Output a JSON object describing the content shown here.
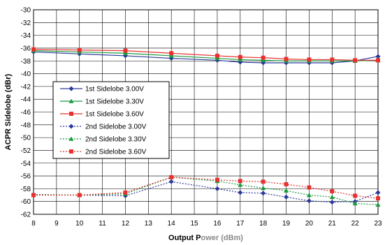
{
  "chart_data": {
    "type": "line",
    "xlabel_parts": [
      "Output P",
      "ower (dBm)"
    ],
    "ylabel": "ACPR Sidelobe (dBr)",
    "x": [
      8,
      10,
      12,
      14,
      16,
      17,
      18,
      19,
      20,
      21,
      22,
      23
    ],
    "xticks": [
      8,
      9,
      10,
      11,
      12,
      13,
      14,
      15,
      16,
      17,
      18,
      19,
      20,
      21,
      22,
      23
    ],
    "xlim": [
      8,
      23
    ],
    "ylim": [
      -62,
      -30
    ],
    "yticks": [
      -30,
      -32,
      -34,
      -36,
      -38,
      -40,
      -42,
      -44,
      -46,
      -48,
      -50,
      -52,
      -54,
      -56,
      -58,
      -60,
      -62
    ],
    "grid": true,
    "legend_position": "left-middle",
    "series": [
      {
        "name": "1st Sidelobe 3.00V",
        "color": "#2b3a9a",
        "marker": "diamond",
        "dashed": false,
        "values": [
          -36.6,
          -36.9,
          -37.2,
          -37.6,
          -37.9,
          -38.2,
          -38.3,
          -38.3,
          -38.3,
          -38.3,
          -38.0,
          -37.3
        ]
      },
      {
        "name": "1st Sidelobe 3.30V",
        "color": "#1a9a3e",
        "marker": "triangle",
        "dashed": false,
        "values": [
          -36.4,
          -36.6,
          -36.8,
          -37.2,
          -37.6,
          -37.8,
          -37.9,
          -38.0,
          -38.0,
          -38.0,
          -38.0,
          -37.9
        ]
      },
      {
        "name": "1st Sidelobe 3.60V",
        "color": "#e8312f",
        "marker": "square",
        "dashed": false,
        "values": [
          -36.2,
          -36.3,
          -36.4,
          -36.8,
          -37.2,
          -37.4,
          -37.5,
          -37.7,
          -37.8,
          -37.8,
          -37.9,
          -37.9
        ]
      },
      {
        "name": "2nd Sidelobe 3.00V",
        "color": "#2b3a9a",
        "marker": "diamond",
        "dashed": true,
        "values": [
          -58.9,
          -59.0,
          -59.1,
          -56.9,
          -58.0,
          -58.6,
          -58.7,
          -59.3,
          -59.9,
          -60.1,
          -60.0,
          -58.6
        ]
      },
      {
        "name": "2nd Sidelobe 3.30V",
        "color": "#1a9a3e",
        "marker": "triangle",
        "dashed": true,
        "values": [
          -58.9,
          -59.0,
          -58.8,
          -56.2,
          -56.8,
          -57.4,
          -57.9,
          -58.3,
          -59.0,
          -59.3,
          -60.3,
          -60.5
        ]
      },
      {
        "name": "2nd Sidelobe 3.60V",
        "color": "#e8312f",
        "marker": "square",
        "dashed": true,
        "values": [
          -59.0,
          -59.0,
          -58.6,
          -56.2,
          -56.6,
          -56.8,
          -56.9,
          -57.3,
          -57.8,
          -58.4,
          -59.1,
          -59.5
        ]
      }
    ]
  }
}
